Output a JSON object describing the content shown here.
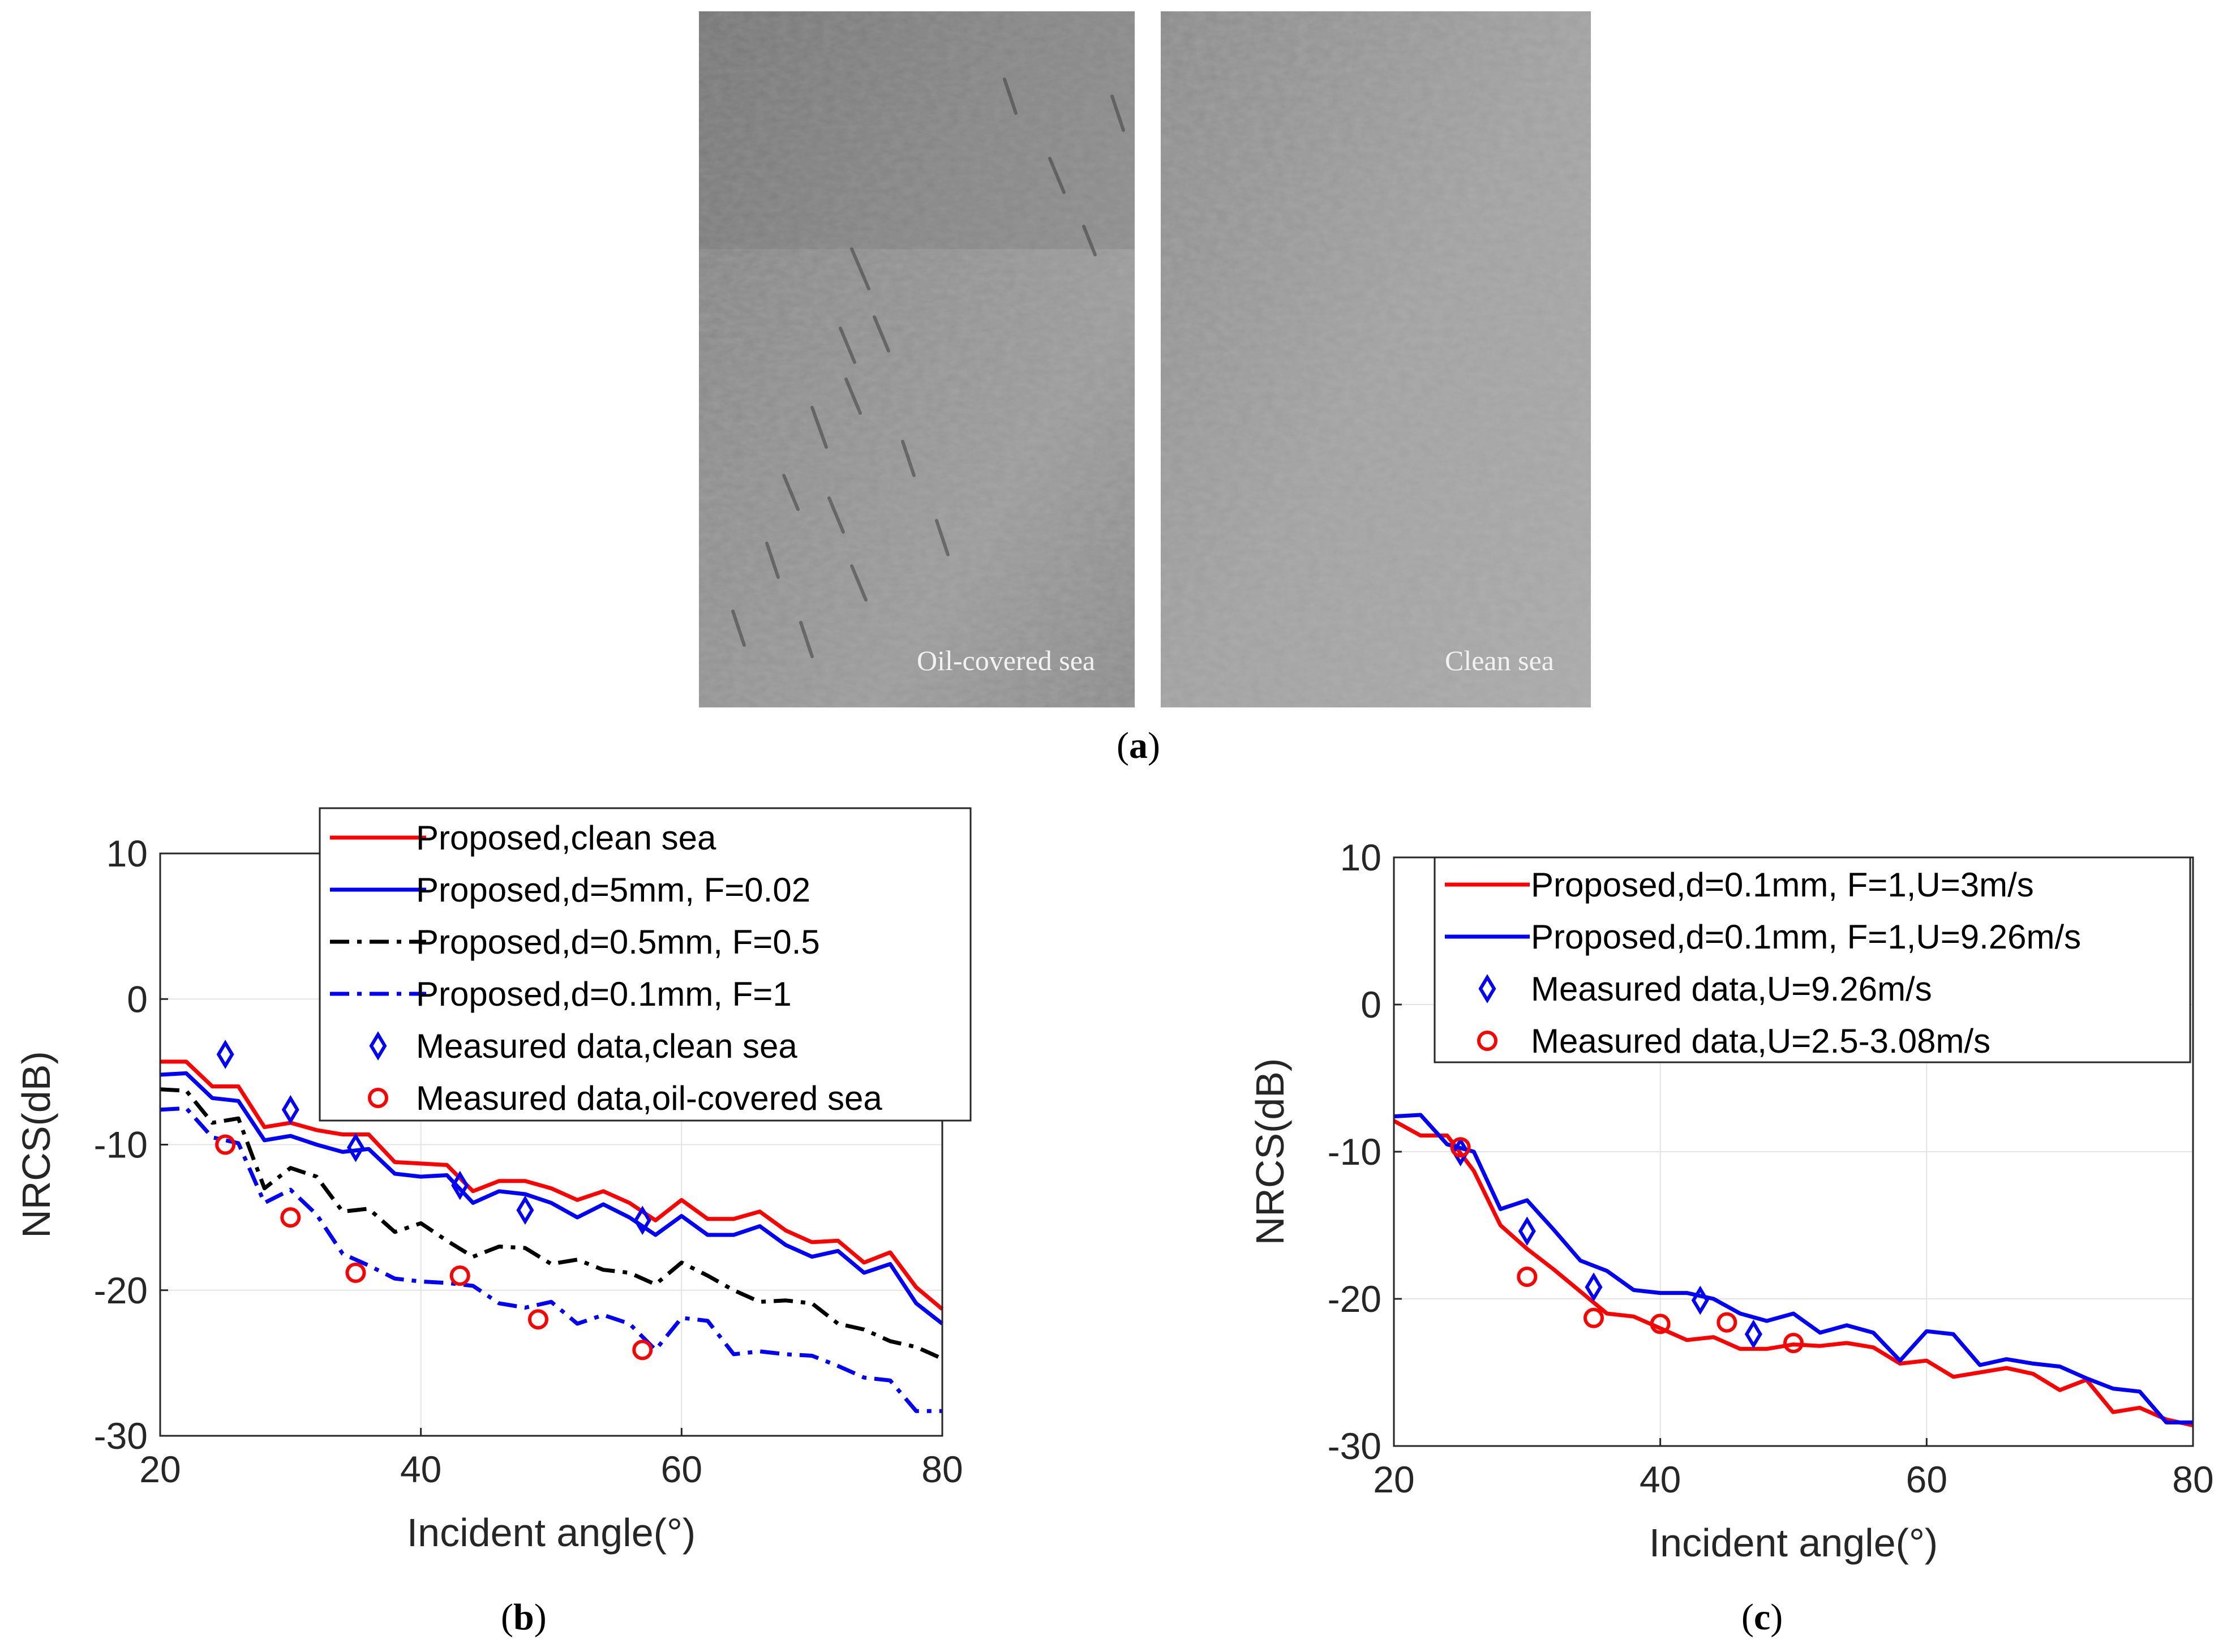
{
  "panel_a": {
    "left_image_label": "Oil-covered sea",
    "right_image_label": "Clean sea",
    "caption_open": "(",
    "caption_letter": "a",
    "caption_close": ")"
  },
  "chart_data": [
    {
      "id": "b",
      "type": "line",
      "caption_open": "(",
      "caption_letter": "b",
      "caption_close": ")",
      "xlabel": "Incident angle(°)",
      "ylabel": "NRCS(dB)",
      "xlim": [
        20,
        80
      ],
      "ylim": [
        -30,
        10
      ],
      "xticks": [
        20,
        40,
        60,
        80
      ],
      "yticks": [
        10,
        0,
        -10,
        -20,
        -30
      ],
      "grid": true,
      "legend_position": "top-center",
      "series": [
        {
          "name": "Proposed,clean sea",
          "kind": "line",
          "color": "#ff0000",
          "dash": "solid",
          "x": [
            20,
            22,
            24,
            26,
            28,
            30,
            32,
            34,
            36,
            38,
            40,
            42,
            44,
            46,
            48,
            50,
            52,
            54,
            56,
            58,
            60,
            62,
            64,
            66,
            68,
            70,
            72,
            74,
            76,
            78,
            80
          ],
          "y": [
            -4.3,
            -4.3,
            -6.0,
            -6.0,
            -8.8,
            -8.5,
            -9.0,
            -9.3,
            -9.3,
            -11.2,
            -11.3,
            -11.4,
            -13.2,
            -12.5,
            -12.5,
            -13.0,
            -13.8,
            -13.2,
            -14.0,
            -15.2,
            -13.8,
            -15.1,
            -15.1,
            -14.6,
            -15.9,
            -16.7,
            -16.6,
            -18.1,
            -17.4,
            -19.8,
            -21.3
          ]
        },
        {
          "name": "Proposed,d=5mm, F=0.02",
          "kind": "line",
          "color": "#0000ff",
          "dash": "solid",
          "x": [
            20,
            22,
            24,
            26,
            28,
            30,
            32,
            34,
            36,
            38,
            40,
            42,
            44,
            46,
            48,
            50,
            52,
            54,
            56,
            58,
            60,
            62,
            64,
            66,
            68,
            70,
            72,
            74,
            76,
            78,
            80
          ],
          "y": [
            -5.2,
            -5.1,
            -6.8,
            -7.0,
            -9.7,
            -9.4,
            -10.0,
            -10.5,
            -10.3,
            -12.0,
            -12.2,
            -12.1,
            -14.0,
            -13.2,
            -13.4,
            -14.0,
            -15.0,
            -14.1,
            -15.0,
            -16.2,
            -14.9,
            -16.2,
            -16.2,
            -15.6,
            -16.9,
            -17.7,
            -17.3,
            -18.8,
            -18.2,
            -20.9,
            -22.3
          ]
        },
        {
          "name": "Proposed,d=0.5mm, F=0.5",
          "kind": "line",
          "color": "#000000",
          "dash": "dashdot",
          "x": [
            20,
            22,
            24,
            26,
            28,
            30,
            32,
            34,
            36,
            38,
            40,
            42,
            44,
            46,
            48,
            50,
            52,
            54,
            56,
            58,
            60,
            62,
            64,
            66,
            68,
            70,
            72,
            74,
            76,
            78,
            80
          ],
          "y": [
            -6.2,
            -6.3,
            -8.5,
            -8.2,
            -13.0,
            -11.6,
            -12.2,
            -14.6,
            -14.4,
            -16.0,
            -15.4,
            -16.6,
            -17.7,
            -17.0,
            -17.1,
            -18.2,
            -17.9,
            -18.6,
            -18.8,
            -19.6,
            -18.1,
            -19.0,
            -20.0,
            -20.8,
            -20.7,
            -20.9,
            -22.3,
            -22.7,
            -23.5,
            -23.9,
            -24.7
          ]
        },
        {
          "name": "Proposed,d=0.1mm, F=1",
          "kind": "line",
          "color": "#0000ff",
          "dash": "dashdot",
          "x": [
            20,
            22,
            24,
            26,
            28,
            30,
            32,
            34,
            36,
            38,
            40,
            42,
            44,
            46,
            48,
            50,
            52,
            54,
            56,
            58,
            60,
            62,
            64,
            66,
            68,
            70,
            72,
            74,
            76,
            78,
            80
          ],
          "y": [
            -7.6,
            -7.5,
            -9.5,
            -9.9,
            -14.0,
            -13.1,
            -14.8,
            -17.5,
            -18.3,
            -19.2,
            -19.4,
            -19.5,
            -19.7,
            -20.9,
            -21.2,
            -20.8,
            -22.3,
            -21.7,
            -22.3,
            -24.1,
            -21.9,
            -22.1,
            -24.4,
            -24.2,
            -24.4,
            -24.5,
            -25.2,
            -26.0,
            -26.2,
            -28.3,
            -28.3
          ]
        },
        {
          "name": "Measured data,clean sea",
          "kind": "marker",
          "marker": "diamond",
          "color": "#0000ff",
          "x": [
            25,
            30,
            35,
            43,
            48,
            57
          ],
          "y": [
            -3.8,
            -7.6,
            -10.2,
            -12.8,
            -14.5,
            -15.2
          ]
        },
        {
          "name": "Measured data,oil-covered sea",
          "kind": "marker",
          "marker": "circle",
          "color": "#ff0000",
          "x": [
            25,
            30,
            35,
            43,
            49,
            57
          ],
          "y": [
            -10.0,
            -15.0,
            -18.8,
            -19.0,
            -22.0,
            -24.1
          ]
        }
      ]
    },
    {
      "id": "c",
      "type": "line",
      "caption_open": "(",
      "caption_letter": "c",
      "caption_close": ")",
      "xlabel": "Incident angle(°)",
      "ylabel": "NRCS(dB)",
      "xlim": [
        20,
        80
      ],
      "ylim": [
        -30,
        10
      ],
      "xticks": [
        20,
        40,
        60,
        80
      ],
      "yticks": [
        10,
        0,
        -10,
        -20,
        -30
      ],
      "grid": true,
      "legend_position": "top-right",
      "series": [
        {
          "name": "Proposed,d=0.1mm, F=1,U=3m/s",
          "kind": "line",
          "color": "#ff0000",
          "dash": "solid",
          "x": [
            20,
            22,
            24,
            26,
            28,
            30,
            32,
            34,
            36,
            38,
            40,
            42,
            44,
            46,
            48,
            50,
            52,
            54,
            56,
            58,
            60,
            62,
            64,
            66,
            68,
            70,
            72,
            74,
            76,
            78,
            80
          ],
          "y": [
            -7.9,
            -8.9,
            -8.9,
            -11.3,
            -15.0,
            -16.6,
            -18.0,
            -19.5,
            -21.0,
            -21.2,
            -22.0,
            -22.8,
            -22.6,
            -23.4,
            -23.4,
            -23.1,
            -23.2,
            -23.0,
            -23.3,
            -24.4,
            -24.2,
            -25.3,
            -25.0,
            -24.7,
            -25.1,
            -26.2,
            -25.5,
            -27.7,
            -27.4,
            -28.2,
            -28.6
          ]
        },
        {
          "name": "Proposed,d=0.1mm, F=1,U=9.26m/s",
          "kind": "line",
          "color": "#0000ff",
          "dash": "solid",
          "x": [
            20,
            22,
            24,
            26,
            28,
            30,
            32,
            34,
            36,
            38,
            40,
            42,
            44,
            46,
            48,
            50,
            52,
            54,
            56,
            58,
            60,
            62,
            64,
            66,
            68,
            70,
            72,
            74,
            76,
            78,
            80
          ],
          "y": [
            -7.6,
            -7.5,
            -9.5,
            -10.0,
            -13.9,
            -13.3,
            -15.3,
            -17.4,
            -18.1,
            -19.4,
            -19.6,
            -19.6,
            -20.0,
            -21.0,
            -21.5,
            -21.0,
            -22.3,
            -21.8,
            -22.3,
            -24.2,
            -22.2,
            -22.4,
            -24.5,
            -24.1,
            -24.4,
            -24.6,
            -25.4,
            -26.1,
            -26.3,
            -28.4,
            -28.4
          ]
        },
        {
          "name": "Measured data,U=9.26m/s",
          "kind": "marker",
          "marker": "diamond",
          "color": "#0000ff",
          "x": [
            25,
            30,
            35,
            43,
            47
          ],
          "y": [
            -10.0,
            -15.4,
            -19.2,
            -20.1,
            -22.4
          ]
        },
        {
          "name": "Measured data,U=2.5-3.08m/s",
          "kind": "marker",
          "marker": "circle",
          "color": "#ff0000",
          "x": [
            25,
            30,
            35,
            40,
            45,
            50
          ],
          "y": [
            -9.7,
            -18.5,
            -21.3,
            -21.7,
            -21.6,
            -23.0
          ]
        }
      ]
    }
  ]
}
